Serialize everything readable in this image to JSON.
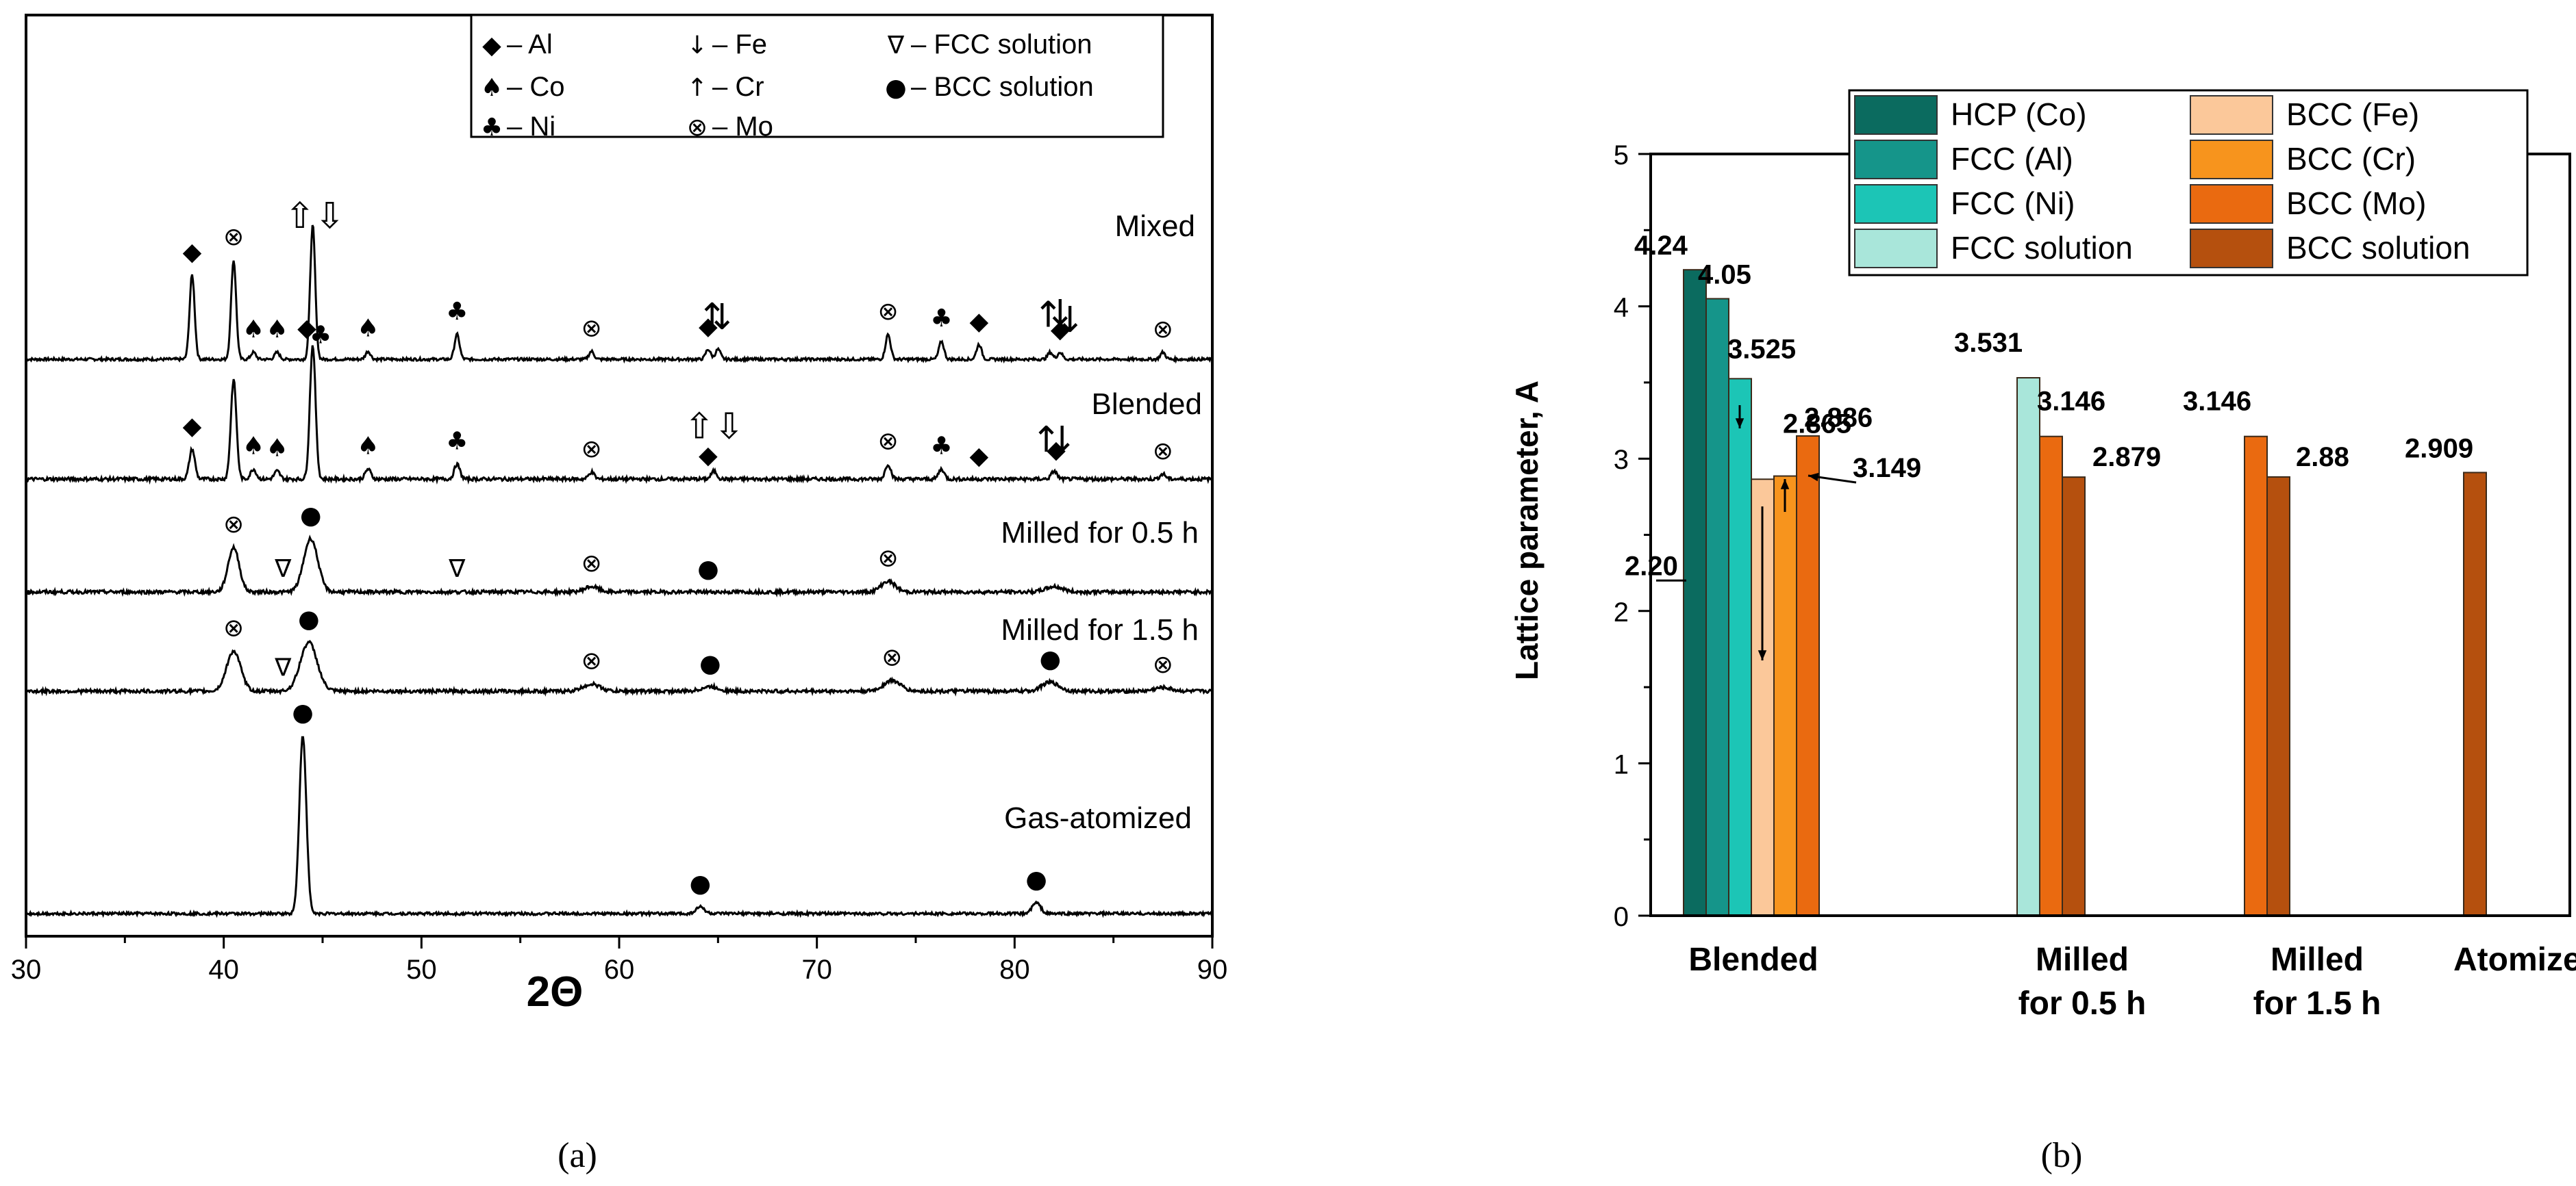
{
  "chart_data": [
    {
      "type": "line",
      "panel_label": "(a)",
      "xlabel": "2Θ",
      "ylabel": "",
      "xlim": [
        30,
        90
      ],
      "xticks": [
        "30",
        "40",
        "50",
        "60",
        "70",
        "80",
        "90"
      ],
      "legend": {
        "position": "top-right",
        "entries": [
          {
            "symbol": "◆",
            "text": "– Al"
          },
          {
            "symbol": "↓",
            "text": "– Fe"
          },
          {
            "symbol": "∇",
            "text": "– FCC solution"
          },
          {
            "symbol": "♠",
            "text": "– Co"
          },
          {
            "symbol": "↑",
            "text": "– Cr"
          },
          {
            "symbol": "●",
            "text": "– BCC solution"
          },
          {
            "symbol": "♣",
            "text": "– Ni"
          },
          {
            "symbol": "⊗",
            "text": "– Mo"
          }
        ]
      },
      "series": [
        {
          "name": "Mixed",
          "label": "Mixed",
          "peaks": [
            {
              "x": 38.4,
              "h": 0.85
            },
            {
              "x": 40.5,
              "h": 1.0
            },
            {
              "x": 41.5,
              "h": 0.07
            },
            {
              "x": 42.7,
              "h": 0.07
            },
            {
              "x": 44.5,
              "h": 1.35
            },
            {
              "x": 47.3,
              "h": 0.08
            },
            {
              "x": 51.8,
              "h": 0.25
            },
            {
              "x": 58.6,
              "h": 0.08
            },
            {
              "x": 64.5,
              "h": 0.1
            },
            {
              "x": 65.0,
              "h": 0.1
            },
            {
              "x": 73.6,
              "h": 0.25
            },
            {
              "x": 76.3,
              "h": 0.18
            },
            {
              "x": 78.2,
              "h": 0.15
            },
            {
              "x": 81.8,
              "h": 0.07
            },
            {
              "x": 82.3,
              "h": 0.07
            },
            {
              "x": 87.5,
              "h": 0.07
            }
          ],
          "annotations": [
            {
              "x": 38.4,
              "sym": "◆"
            },
            {
              "x": 40.5,
              "sym": "⊗"
            },
            {
              "x": 41.5,
              "sym": "♠"
            },
            {
              "x": 42.7,
              "sym": "♠"
            },
            {
              "x": 44.2,
              "sym": "◆"
            },
            {
              "x": 44.9,
              "sym": "♣"
            },
            {
              "x": 44.6,
              "sym": "⇧⇩"
            },
            {
              "x": 47.3,
              "sym": "♠"
            },
            {
              "x": 51.8,
              "sym": "♣"
            },
            {
              "x": 58.6,
              "sym": "⊗"
            },
            {
              "x": 64.5,
              "sym": "◆"
            },
            {
              "x": 64.7,
              "sym": "↑"
            },
            {
              "x": 65.2,
              "sym": "↓"
            },
            {
              "x": 73.6,
              "sym": "⊗"
            },
            {
              "x": 76.3,
              "sym": "♣"
            },
            {
              "x": 78.2,
              "sym": "◆"
            },
            {
              "x": 81.7,
              "sym": "↑"
            },
            {
              "x": 82.3,
              "sym": "↓"
            },
            {
              "x": 82.8,
              "sym": "↓"
            },
            {
              "x": 82.3,
              "sym": "◆"
            },
            {
              "x": 87.5,
              "sym": "⊗"
            }
          ]
        },
        {
          "name": "Blended",
          "label": "Blended",
          "peaks": [
            {
              "x": 38.4,
              "h": 0.3
            },
            {
              "x": 40.5,
              "h": 1.0
            },
            {
              "x": 41.5,
              "h": 0.1
            },
            {
              "x": 42.7,
              "h": 0.08
            },
            {
              "x": 44.5,
              "h": 1.35
            },
            {
              "x": 47.3,
              "h": 0.1
            },
            {
              "x": 51.8,
              "h": 0.15
            },
            {
              "x": 58.6,
              "h": 0.07
            },
            {
              "x": 64.8,
              "h": 0.08
            },
            {
              "x": 73.6,
              "h": 0.15
            },
            {
              "x": 76.3,
              "h": 0.1
            },
            {
              "x": 82.0,
              "h": 0.08
            },
            {
              "x": 87.5,
              "h": 0.05
            }
          ],
          "annotations": [
            {
              "x": 38.4,
              "sym": "◆"
            },
            {
              "x": 41.5,
              "sym": "♠"
            },
            {
              "x": 42.7,
              "sym": "♠"
            },
            {
              "x": 47.3,
              "sym": "♠"
            },
            {
              "x": 51.8,
              "sym": "♣"
            },
            {
              "x": 58.6,
              "sym": "⊗"
            },
            {
              "x": 64.5,
              "sym": "◆"
            },
            {
              "x": 64.8,
              "sym": "⇧⇩"
            },
            {
              "x": 73.6,
              "sym": "⊗"
            },
            {
              "x": 76.3,
              "sym": "♣"
            },
            {
              "x": 78.2,
              "sym": "◆"
            },
            {
              "x": 81.6,
              "sym": "↑"
            },
            {
              "x": 82.4,
              "sym": "↓"
            },
            {
              "x": 82.1,
              "sym": "◆"
            },
            {
              "x": 87.5,
              "sym": "⊗"
            }
          ]
        },
        {
          "name": "Milled for 0.5 h",
          "label": "Milled for 0.5 h",
          "peaks": [
            {
              "x": 40.5,
              "h": 0.5,
              "w": 0.4
            },
            {
              "x": 44.4,
              "h": 0.6,
              "w": 0.5
            },
            {
              "x": 58.6,
              "h": 0.06,
              "w": 0.5
            },
            {
              "x": 73.6,
              "h": 0.12,
              "w": 0.5
            },
            {
              "x": 82.0,
              "h": 0.06,
              "w": 0.6
            }
          ],
          "annotations": [
            {
              "x": 40.5,
              "sym": "⊗"
            },
            {
              "x": 43.0,
              "sym": "∇"
            },
            {
              "x": 44.4,
              "sym": "●"
            },
            {
              "x": 51.8,
              "sym": "∇"
            },
            {
              "x": 58.6,
              "sym": "⊗"
            },
            {
              "x": 64.5,
              "sym": "●"
            },
            {
              "x": 73.6,
              "sym": "⊗"
            }
          ]
        },
        {
          "name": "Milled for 1.5 h",
          "label": "Milled for 1.5 h",
          "peaks": [
            {
              "x": 40.5,
              "h": 0.45,
              "w": 0.5
            },
            {
              "x": 44.3,
              "h": 0.55,
              "w": 0.6
            },
            {
              "x": 58.6,
              "h": 0.08,
              "w": 0.6
            },
            {
              "x": 64.6,
              "h": 0.05,
              "w": 0.6
            },
            {
              "x": 73.8,
              "h": 0.12,
              "w": 0.6
            },
            {
              "x": 81.8,
              "h": 0.1,
              "w": 0.6
            },
            {
              "x": 87.5,
              "h": 0.04,
              "w": 0.6
            }
          ],
          "annotations": [
            {
              "x": 40.5,
              "sym": "⊗"
            },
            {
              "x": 43.0,
              "sym": "∇"
            },
            {
              "x": 44.3,
              "sym": "●"
            },
            {
              "x": 58.6,
              "sym": "⊗"
            },
            {
              "x": 64.6,
              "sym": "●"
            },
            {
              "x": 73.8,
              "sym": "⊗"
            },
            {
              "x": 81.8,
              "sym": "●"
            },
            {
              "x": 87.5,
              "sym": "⊗"
            }
          ]
        },
        {
          "name": "Gas-atomized",
          "label": "Gas-atomized",
          "peaks": [
            {
              "x": 44.0,
              "h": 2.6,
              "w": 0.25
            },
            {
              "x": 64.1,
              "h": 0.1,
              "w": 0.3
            },
            {
              "x": 81.1,
              "h": 0.16,
              "w": 0.3
            }
          ],
          "annotations": [
            {
              "x": 44.0,
              "sym": "●"
            },
            {
              "x": 64.1,
              "sym": "●"
            },
            {
              "x": 81.1,
              "sym": "●"
            }
          ]
        }
      ]
    },
    {
      "type": "bar",
      "panel_label": "(b)",
      "ylabel": "Lattice parameter, A",
      "ylim": [
        0,
        5
      ],
      "yticks": [
        "0",
        "1",
        "2",
        "3",
        "4",
        "5"
      ],
      "categories": [
        "Blended",
        "Milled\nfor 0.5 h",
        "Milled\nfor 1.5 h",
        "Atomized"
      ],
      "legend": {
        "position": "top",
        "entries": [
          {
            "name": "HCP (Co)",
            "color": "#0b6b5f"
          },
          {
            "name": "BCC (Fe)",
            "color": "#fbc89a"
          },
          {
            "name": "FCC (Al)",
            "color": "#15958a"
          },
          {
            "name": "BCC (Cr)",
            "color": "#f7941d"
          },
          {
            "name": "FCC (Ni)",
            "color": "#1cc5b6"
          },
          {
            "name": "BCC (Mo)",
            "color": "#ea6a10"
          },
          {
            "name": "FCC solution",
            "color": "#a9e6da"
          },
          {
            "name": "BCC solution",
            "color": "#b5500e"
          }
        ]
      },
      "bars": [
        {
          "category": 0,
          "series": "HCP (Co)",
          "value": 4.24,
          "label": "4.24"
        },
        {
          "category": 0,
          "series": "FCC (Al)",
          "value": 4.05,
          "label": "4.05"
        },
        {
          "category": 0,
          "series": "FCC (Ni)",
          "value": 3.525,
          "label": "3.525"
        },
        {
          "category": 0,
          "series": "BCC (Fe)",
          "value": 2.865,
          "label": "2.865"
        },
        {
          "category": 0,
          "series": "BCC (Cr)",
          "value": 2.886,
          "label": "2.886"
        },
        {
          "category": 0,
          "series": "BCC (Mo)",
          "value": 3.149,
          "label": "3.149"
        },
        {
          "category": 1,
          "series": "FCC solution",
          "value": 3.531,
          "label": "3.531"
        },
        {
          "category": 1,
          "series": "BCC (Mo)",
          "value": 3.146,
          "label": "3.146"
        },
        {
          "category": 1,
          "series": "BCC solution",
          "value": 2.879,
          "label": "2.879"
        },
        {
          "category": 2,
          "series": "BCC (Mo)",
          "value": 3.146,
          "label": "3.146"
        },
        {
          "category": 2,
          "series": "BCC solution",
          "value": 2.88,
          "label": "2.88"
        },
        {
          "category": 3,
          "series": "BCC solution",
          "value": 2.909,
          "label": "2.909"
        }
      ],
      "annotations": [
        {
          "text": "2.20",
          "value": 2.2
        }
      ]
    }
  ]
}
